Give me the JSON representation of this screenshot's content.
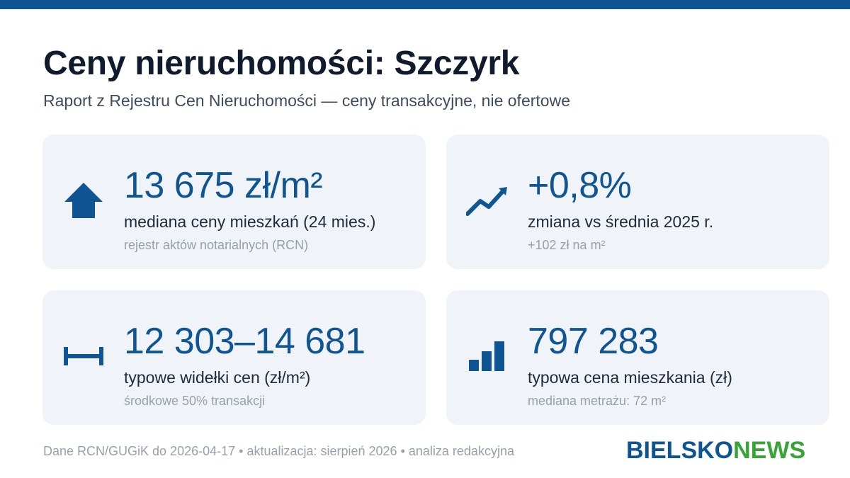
{
  "header": {
    "title": "Ceny nieruchomości: Szczyrk",
    "subtitle": "Raport z Rejestru Cen Nieruchomości — ceny transakcyjne, nie ofertowe"
  },
  "cards": [
    {
      "icon": "house-icon",
      "value": "13 675 zł/m²",
      "label": "mediana ceny mieszkań (24 mies.)",
      "note": "rejestr aktów notarialnych (RCN)"
    },
    {
      "icon": "trend-up-icon",
      "value": "+0,8%",
      "label": "zmiana vs średnia 2025 r.",
      "note": "+102 zł na m²"
    },
    {
      "icon": "range-icon",
      "value": "12 303–14 681",
      "label": "typowe widełki cen (zł/m²)",
      "note": "środkowe 50% transakcji"
    },
    {
      "icon": "bar-chart-icon",
      "value": "797 283",
      "label": "typowa cena mieszkania (zł)",
      "note": "mediana metrażu: 72 m²"
    }
  ],
  "footer": {
    "text": "Dane RCN/GUGiK do 2026-04-17 • aktualizacja: sierpień 2026 • analiza redakcyjna"
  },
  "logo": {
    "part1": "BIELSKO",
    "part2": "NEWS",
    "color1": "#0f5593",
    "color2": "#3aa338"
  },
  "colors": {
    "accent": "#0f5593",
    "card_bg": "#f0f4f8"
  }
}
